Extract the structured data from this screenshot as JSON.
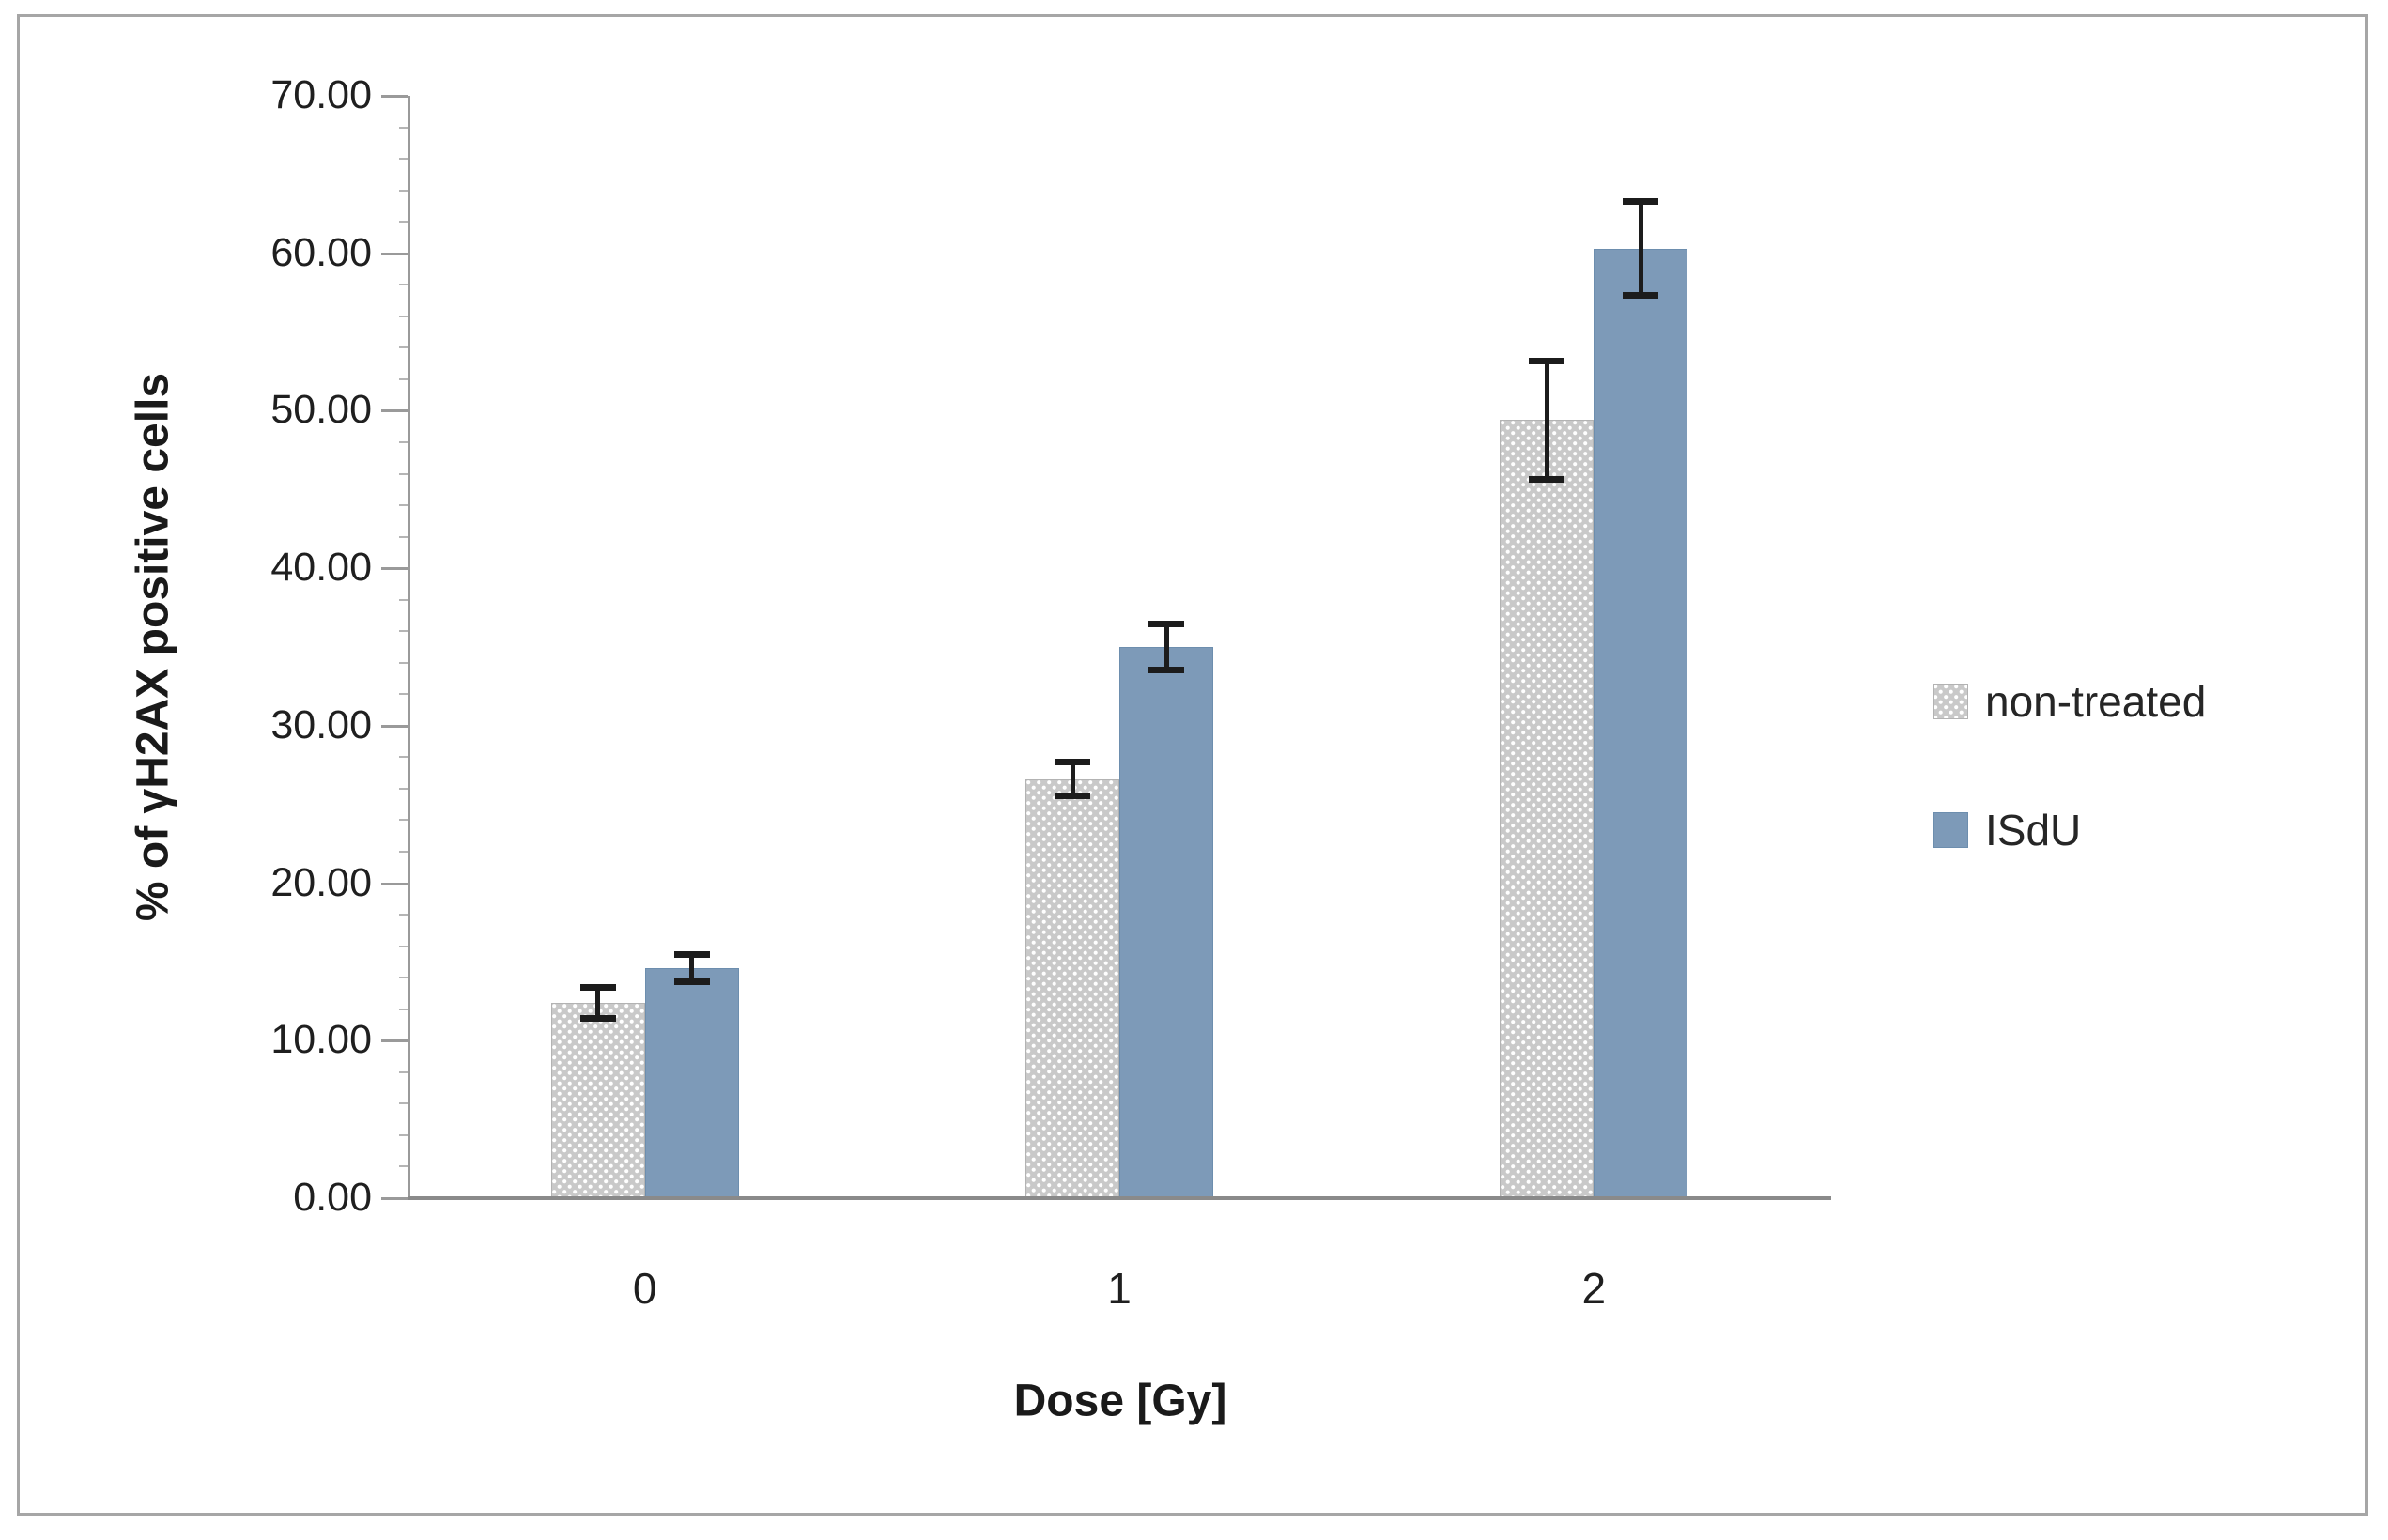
{
  "chart_data": {
    "type": "bar",
    "title": "",
    "categories": [
      "0",
      "1",
      "2"
    ],
    "series": [
      {
        "name": "non-treated",
        "values": [
          12.4,
          26.6,
          49.4
        ],
        "errors": [
          1.0,
          1.1,
          3.8
        ],
        "color": "#c9c9c9",
        "pattern": "dots",
        "border_color": "#b3b3b3"
      },
      {
        "name": "ISdU",
        "values": [
          14.6,
          35.0,
          60.3
        ],
        "errors": [
          0.9,
          1.5,
          3.0
        ],
        "color": "#7d9ab8",
        "pattern": "solid",
        "border_color": "#6d8eae"
      }
    ],
    "xlabel": "Dose [Gy]",
    "ylabel": "% of γH2AX positive cells",
    "ylim": [
      0,
      70
    ],
    "ytick_labels": [
      "0.00",
      "10.00",
      "20.00",
      "30.00",
      "40.00",
      "50.00",
      "60.00",
      "70.00"
    ],
    "minor_tick_step": 2,
    "grid": false,
    "legend_position": "right",
    "error_bar_color": "#1c1c1c",
    "axis_color": "#9a9a9a",
    "text_color": "#1f1f1f",
    "frame_color": "#a6a6a6",
    "background_color": "#ffffff"
  }
}
